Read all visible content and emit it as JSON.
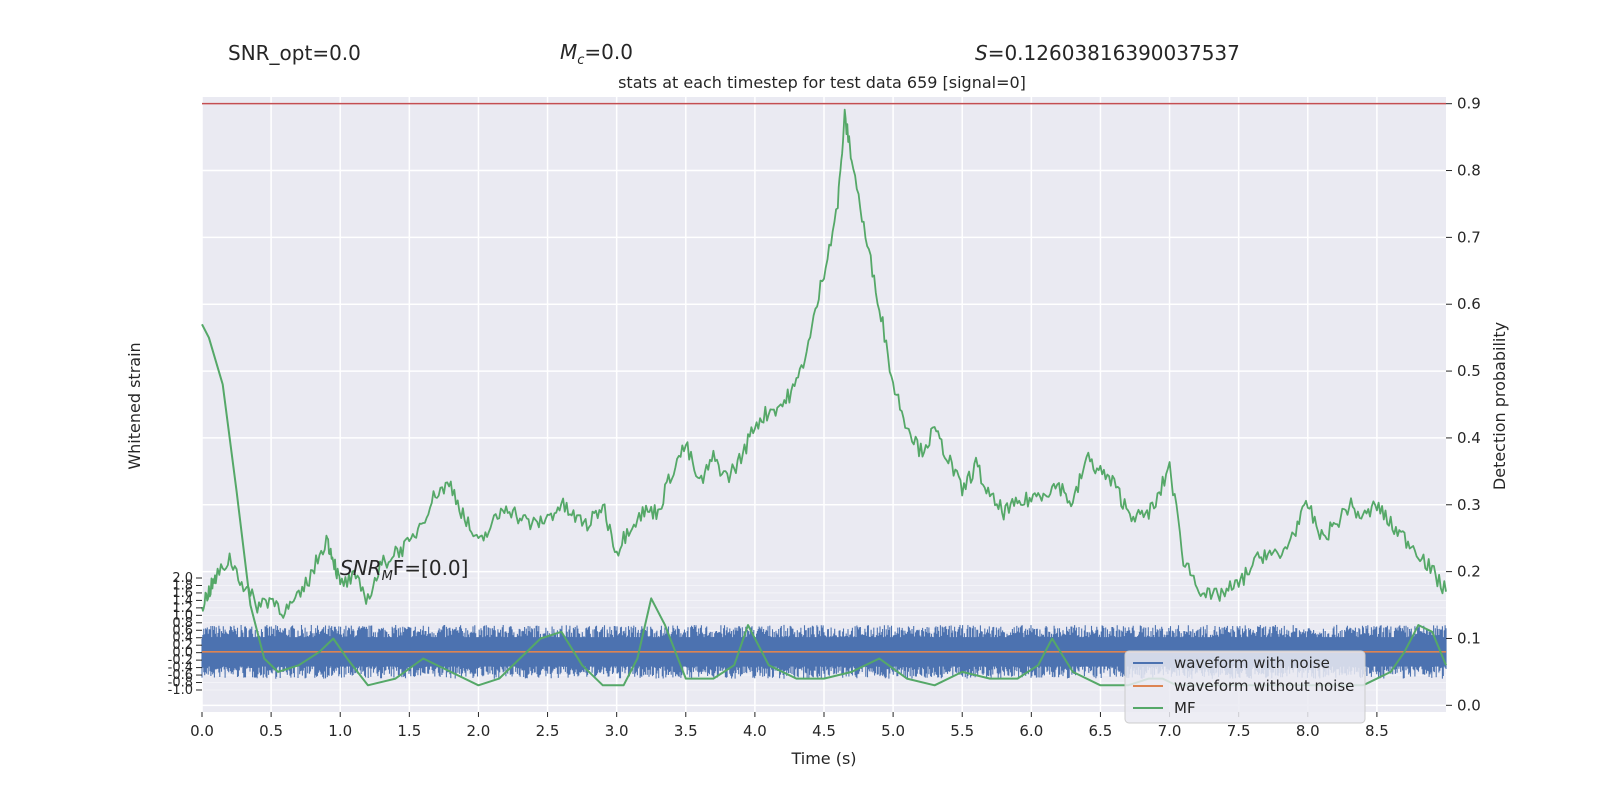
{
  "header": {
    "snr_opt": "SNR_opt=0.0",
    "mc_symbol": "M",
    "mc_sub": "c",
    "mc_value": "=0.0",
    "s_symbol": "S",
    "s_value": "=0.12603816390037537",
    "title": "stats at each timestep for test data 659 [signal=0]"
  },
  "annotation": {
    "snr_mf_symbol": "SNR",
    "snr_mf_sub": "M",
    "snr_mf_rest": "F=[0.0]"
  },
  "axes": {
    "xlabel": "Time (s)",
    "ylabel_left": "Whitened strain",
    "ylabel_right": "Detection probability"
  },
  "legend": {
    "items": [
      {
        "label": "waveform with noise",
        "color": "#4c72b0"
      },
      {
        "label": "waveform without noise",
        "color": "#dd8452"
      },
      {
        "label": "MF",
        "color": "#55a868"
      }
    ]
  },
  "colors": {
    "plot_bg": "#eaeaf2",
    "grid": "#ffffff",
    "noise": "#4c72b0",
    "clean": "#dd8452",
    "mf": "#55a868",
    "prob": "#55a868",
    "threshold": "#c44e52"
  },
  "chart_data": {
    "type": "line",
    "xlim": [
      0.0,
      9.0
    ],
    "x_ticks": [
      "0.0",
      "0.5",
      "1.0",
      "1.5",
      "2.0",
      "2.5",
      "3.0",
      "3.5",
      "4.0",
      "4.5",
      "5.0",
      "5.5",
      "6.0",
      "6.5",
      "7.0",
      "7.5",
      "8.0",
      "8.5"
    ],
    "x_tick_values": [
      0,
      0.5,
      1,
      1.5,
      2,
      2.5,
      3,
      3.5,
      4,
      4.5,
      5,
      5.5,
      6,
      6.5,
      7,
      7.5,
      8,
      8.5
    ],
    "y_right_lim": [
      -0.01,
      0.91
    ],
    "y_right_ticks": [
      "0.0",
      "0.1",
      "0.2",
      "0.3",
      "0.4",
      "0.5",
      "0.6",
      "0.7",
      "0.8",
      "0.9"
    ],
    "y_right_tick_values": [
      0,
      0.1,
      0.2,
      0.3,
      0.4,
      0.5,
      0.6,
      0.7,
      0.8,
      0.9
    ],
    "y_left_ticks": [
      "2.0",
      "1.8",
      "1.6",
      "1.4",
      "1.2",
      "1.0",
      "0.8",
      "0.6",
      "0.4",
      "0.2",
      "0.0",
      "-0.2",
      "-0.4",
      "-0.6",
      "-0.8",
      "-1.0"
    ],
    "threshold": 0.9,
    "series": [
      {
        "name": "Detection probability",
        "x": [
          0,
          0.05,
          0.1,
          0.2,
          0.3,
          0.4,
          0.5,
          0.6,
          0.7,
          0.8,
          0.9,
          0.95,
          1.0,
          1.1,
          1.2,
          1.3,
          1.4,
          1.5,
          1.6,
          1.7,
          1.8,
          1.9,
          2.0,
          2.1,
          2.2,
          2.3,
          2.4,
          2.5,
          2.6,
          2.7,
          2.8,
          2.9,
          3.0,
          3.1,
          3.2,
          3.3,
          3.4,
          3.5,
          3.6,
          3.7,
          3.8,
          3.9,
          4.0,
          4.1,
          4.2,
          4.3,
          4.4,
          4.5,
          4.6,
          4.65,
          4.7,
          4.8,
          4.9,
          5.0,
          5.1,
          5.2,
          5.3,
          5.4,
          5.5,
          5.6,
          5.7,
          5.8,
          5.9,
          6.0,
          6.1,
          6.2,
          6.3,
          6.4,
          6.5,
          6.6,
          6.7,
          6.8,
          6.9,
          7.0,
          7.1,
          7.2,
          7.3,
          7.4,
          7.5,
          7.6,
          7.7,
          7.8,
          7.9,
          8.0,
          8.1,
          8.2,
          8.3,
          8.4,
          8.5,
          8.6,
          8.7,
          8.8,
          8.9,
          9.0
        ],
        "values": [
          0.15,
          0.17,
          0.19,
          0.22,
          0.18,
          0.15,
          0.16,
          0.14,
          0.16,
          0.2,
          0.25,
          0.22,
          0.18,
          0.19,
          0.16,
          0.21,
          0.23,
          0.24,
          0.28,
          0.32,
          0.33,
          0.28,
          0.24,
          0.27,
          0.3,
          0.28,
          0.27,
          0.28,
          0.3,
          0.28,
          0.27,
          0.3,
          0.23,
          0.27,
          0.29,
          0.29,
          0.35,
          0.39,
          0.33,
          0.37,
          0.34,
          0.37,
          0.42,
          0.44,
          0.45,
          0.48,
          0.55,
          0.65,
          0.75,
          0.88,
          0.82,
          0.7,
          0.6,
          0.48,
          0.42,
          0.38,
          0.41,
          0.37,
          0.32,
          0.36,
          0.31,
          0.29,
          0.3,
          0.31,
          0.32,
          0.33,
          0.3,
          0.37,
          0.35,
          0.33,
          0.29,
          0.28,
          0.3,
          0.36,
          0.22,
          0.18,
          0.16,
          0.17,
          0.18,
          0.21,
          0.23,
          0.22,
          0.26,
          0.3,
          0.25,
          0.27,
          0.3,
          0.28,
          0.3,
          0.27,
          0.25,
          0.23,
          0.2,
          0.17
        ]
      },
      {
        "name": "waveform without noise",
        "x": [
          0,
          9
        ],
        "values": [
          0.08,
          0.08
        ]
      },
      {
        "name": "MF",
        "x": [
          0,
          0.05,
          0.15,
          0.25,
          0.35,
          0.45,
          0.55,
          0.7,
          0.85,
          0.95,
          1.05,
          1.2,
          1.4,
          1.6,
          1.8,
          2.0,
          2.15,
          2.3,
          2.45,
          2.6,
          2.75,
          2.9,
          3.05,
          3.15,
          3.25,
          3.35,
          3.5,
          3.7,
          3.85,
          3.95,
          4.1,
          4.3,
          4.5,
          4.7,
          4.9,
          5.1,
          5.3,
          5.5,
          5.7,
          5.9,
          6.05,
          6.15,
          6.3,
          6.5,
          6.7,
          6.85,
          6.95,
          7.05,
          7.2,
          7.4,
          7.6,
          7.8,
          8.0,
          8.2,
          8.4,
          8.6,
          8.7,
          8.8,
          8.9,
          9.0
        ],
        "values": [
          0.57,
          0.55,
          0.48,
          0.32,
          0.15,
          0.07,
          0.05,
          0.06,
          0.08,
          0.1,
          0.07,
          0.03,
          0.04,
          0.07,
          0.05,
          0.03,
          0.04,
          0.07,
          0.1,
          0.11,
          0.06,
          0.03,
          0.03,
          0.07,
          0.16,
          0.12,
          0.04,
          0.04,
          0.06,
          0.12,
          0.06,
          0.04,
          0.04,
          0.05,
          0.07,
          0.04,
          0.03,
          0.05,
          0.04,
          0.04,
          0.06,
          0.1,
          0.05,
          0.03,
          0.03,
          0.04,
          0.04,
          0.03,
          0.03,
          0.03,
          0.03,
          0.03,
          0.03,
          0.03,
          0.03,
          0.05,
          0.08,
          0.12,
          0.11,
          0.06
        ]
      }
    ],
    "noise_band": {
      "center": 0.08,
      "low": 0.045,
      "high": 0.115
    }
  }
}
